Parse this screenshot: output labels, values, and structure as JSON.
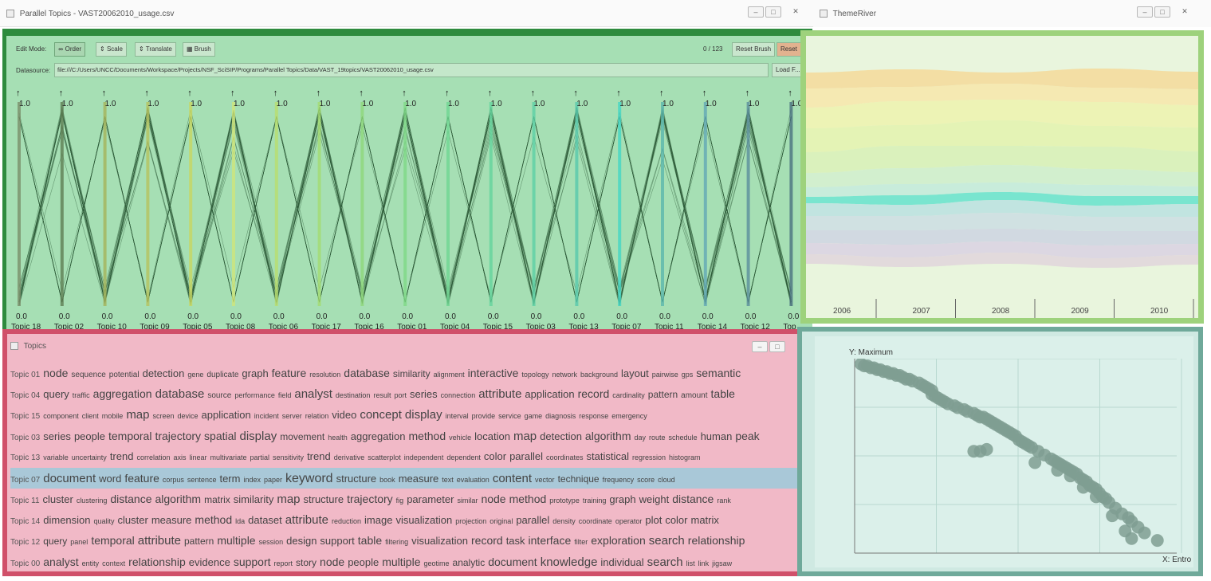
{
  "parallel_window": {
    "title": "Parallel Topics - VAST20062010_usage.csv",
    "toolbar": {
      "edit_mode_label": "Edit Mode:",
      "order_label": "Order",
      "scale_label": "Scale",
      "translate_label": "Translate",
      "brush_label": "Brush",
      "count": "0 / 123",
      "reset_brush_label": "Reset Brush",
      "reset_label": "Reset"
    },
    "datasource": {
      "label": "Datasource:",
      "value": "file:///C:/Users/UNCC/Documents/Workspace/Projects/NSF_SciSIP/Programs/Parallel Topics/Data/VAST_19topics/VAST20062010_usage.csv",
      "load_label": "Load F..."
    },
    "axes": [
      {
        "name": "Topic 18",
        "color": "#7a8f6a"
      },
      {
        "name": "Topic 02",
        "color": "#5e7d52"
      },
      {
        "name": "Topic 10",
        "color": "#a5b35a"
      },
      {
        "name": "Topic 09",
        "color": "#b7c25e"
      },
      {
        "name": "Topic 05",
        "color": "#c8d660"
      },
      {
        "name": "Topic 08",
        "color": "#cfe57a"
      },
      {
        "name": "Topic 06",
        "color": "#b9dd6e"
      },
      {
        "name": "Topic 17",
        "color": "#a4db72"
      },
      {
        "name": "Topic 16",
        "color": "#8fd77a"
      },
      {
        "name": "Topic 01",
        "color": "#7ed886"
      },
      {
        "name": "Topic 04",
        "color": "#6fd692"
      },
      {
        "name": "Topic 15",
        "color": "#64d39c"
      },
      {
        "name": "Topic 03",
        "color": "#5ccfa5"
      },
      {
        "name": "Topic 13",
        "color": "#57c8ad"
      },
      {
        "name": "Topic 07",
        "color": "#43d6c4"
      },
      {
        "name": "Topic 11",
        "color": "#5bb7ad"
      },
      {
        "name": "Topic 14",
        "color": "#63a8b5"
      },
      {
        "name": "Topic 12",
        "color": "#5b8d9c"
      },
      {
        "name": "Top",
        "color": "#4a7080"
      }
    ],
    "axis_max": "1.0",
    "axis_min": "0.0"
  },
  "themeriver_window": {
    "title": "ThemeRiver",
    "years": [
      "2006",
      "2007",
      "2008",
      "2009",
      "2010"
    ]
  },
  "topics_window": {
    "title": "Topics",
    "rows": [
      {
        "id": "Topic 01",
        "selected": false,
        "words": [
          [
            "node",
            14
          ],
          [
            "sequence",
            10
          ],
          [
            "potential",
            10
          ],
          [
            "detection",
            13
          ],
          [
            "gene",
            9
          ],
          [
            "duplicate",
            10
          ],
          [
            "graph",
            13
          ],
          [
            "feature",
            14
          ],
          [
            "resolution",
            9
          ],
          [
            "database",
            14
          ],
          [
            "similarity",
            12
          ],
          [
            "alignment",
            9
          ],
          [
            "interactive",
            14
          ],
          [
            "topology",
            9
          ],
          [
            "network",
            9
          ],
          [
            "background",
            9
          ],
          [
            "layout",
            13
          ],
          [
            "pairwise",
            9
          ],
          [
            "gps",
            9
          ],
          [
            "semantic",
            14
          ]
        ]
      },
      {
        "id": "Topic 04",
        "selected": false,
        "words": [
          [
            "query",
            13
          ],
          [
            "traffic",
            9
          ],
          [
            "aggregation",
            14
          ],
          [
            "database",
            15
          ],
          [
            "source",
            10
          ],
          [
            "performance",
            9
          ],
          [
            "field",
            9
          ],
          [
            "analyst",
            15
          ],
          [
            "destination",
            9
          ],
          [
            "result",
            9
          ],
          [
            "port",
            9
          ],
          [
            "series",
            13
          ],
          [
            "connection",
            9
          ],
          [
            "attribute",
            15
          ],
          [
            "application",
            13
          ],
          [
            "record",
            14
          ],
          [
            "cardinality",
            9
          ],
          [
            "pattern",
            12
          ],
          [
            "amount",
            10
          ],
          [
            "table",
            14
          ]
        ]
      },
      {
        "id": "Topic 15",
        "selected": false,
        "words": [
          [
            "component",
            9
          ],
          [
            "client",
            9
          ],
          [
            "mobile",
            9
          ],
          [
            "map",
            15
          ],
          [
            "screen",
            9
          ],
          [
            "device",
            9
          ],
          [
            "application",
            13
          ],
          [
            "incident",
            9
          ],
          [
            "server",
            9
          ],
          [
            "relation",
            9
          ],
          [
            "video",
            13
          ],
          [
            "concept",
            15
          ],
          [
            "display",
            15
          ],
          [
            "interval",
            9
          ],
          [
            "provide",
            9
          ],
          [
            "service",
            9
          ],
          [
            "game",
            9
          ],
          [
            "diagnosis",
            9
          ],
          [
            "response",
            9
          ],
          [
            "emergency",
            9
          ]
        ]
      },
      {
        "id": "Topic 03",
        "selected": false,
        "words": [
          [
            "series",
            13
          ],
          [
            "people",
            13
          ],
          [
            "temporal",
            14
          ],
          [
            "trajectory",
            14
          ],
          [
            "spatial",
            14
          ],
          [
            "display",
            15
          ],
          [
            "movement",
            12
          ],
          [
            "health",
            9
          ],
          [
            "aggregation",
            13
          ],
          [
            "method",
            14
          ],
          [
            "vehicle",
            9
          ],
          [
            "location",
            13
          ],
          [
            "map",
            15
          ],
          [
            "detection",
            13
          ],
          [
            "algorithm",
            14
          ],
          [
            "day",
            9
          ],
          [
            "route",
            9
          ],
          [
            "schedule",
            9
          ],
          [
            "human",
            13
          ],
          [
            "peak",
            14
          ]
        ]
      },
      {
        "id": "Topic 13",
        "selected": false,
        "words": [
          [
            "variable",
            9
          ],
          [
            "uncertainty",
            9
          ],
          [
            "trend",
            13
          ],
          [
            "correlation",
            9
          ],
          [
            "axis",
            9
          ],
          [
            "linear",
            9
          ],
          [
            "multivariate",
            9
          ],
          [
            "partial",
            9
          ],
          [
            "sensitivity",
            9
          ],
          [
            "trend",
            13
          ],
          [
            "derivative",
            9
          ],
          [
            "scatterplot",
            9
          ],
          [
            "independent",
            9
          ],
          [
            "dependent",
            9
          ],
          [
            "color",
            13
          ],
          [
            "parallel",
            13
          ],
          [
            "coordinates",
            9
          ],
          [
            "statistical",
            13
          ],
          [
            "regression",
            9
          ],
          [
            "histogram",
            9
          ]
        ]
      },
      {
        "id": "Topic 07",
        "selected": true,
        "words": [
          [
            "document",
            15
          ],
          [
            "word",
            13
          ],
          [
            "feature",
            14
          ],
          [
            "corpus",
            9
          ],
          [
            "sentence",
            9
          ],
          [
            "term",
            13
          ],
          [
            "index",
            9
          ],
          [
            "paper",
            9
          ],
          [
            "keyword",
            16
          ],
          [
            "structure",
            13
          ],
          [
            "book",
            9
          ],
          [
            "measure",
            13
          ],
          [
            "text",
            9
          ],
          [
            "evaluation",
            9
          ],
          [
            "content",
            15
          ],
          [
            "vector",
            9
          ],
          [
            "technique",
            12
          ],
          [
            "frequency",
            9
          ],
          [
            "score",
            9
          ],
          [
            "cloud",
            9
          ]
        ]
      },
      {
        "id": "Topic 11",
        "selected": false,
        "words": [
          [
            "cluster",
            13
          ],
          [
            "clustering",
            9
          ],
          [
            "distance",
            14
          ],
          [
            "algorithm",
            14
          ],
          [
            "matrix",
            12
          ],
          [
            "similarity",
            13
          ],
          [
            "map",
            15
          ],
          [
            "structure",
            13
          ],
          [
            "trajectory",
            14
          ],
          [
            "fig",
            9
          ],
          [
            "parameter",
            13
          ],
          [
            "similar",
            9
          ],
          [
            "node",
            14
          ],
          [
            "method",
            14
          ],
          [
            "prototype",
            9
          ],
          [
            "training",
            9
          ],
          [
            "graph",
            13
          ],
          [
            "weight",
            13
          ],
          [
            "distance",
            14
          ],
          [
            "rank",
            9
          ]
        ]
      },
      {
        "id": "Topic 14",
        "selected": false,
        "words": [
          [
            "dimension",
            13
          ],
          [
            "quality",
            9
          ],
          [
            "cluster",
            13
          ],
          [
            "measure",
            13
          ],
          [
            "method",
            14
          ],
          [
            "lda",
            9
          ],
          [
            "dataset",
            13
          ],
          [
            "attribute",
            15
          ],
          [
            "reduction",
            9
          ],
          [
            "image",
            13
          ],
          [
            "visualization",
            13
          ],
          [
            "projection",
            9
          ],
          [
            "original",
            9
          ],
          [
            "parallel",
            13
          ],
          [
            "density",
            9
          ],
          [
            "coordinate",
            9
          ],
          [
            "operator",
            9
          ],
          [
            "plot",
            13
          ],
          [
            "color",
            13
          ],
          [
            "matrix",
            13
          ]
        ]
      },
      {
        "id": "Topic 12",
        "selected": false,
        "words": [
          [
            "query",
            12
          ],
          [
            "panel",
            9
          ],
          [
            "temporal",
            14
          ],
          [
            "attribute",
            15
          ],
          [
            "pattern",
            12
          ],
          [
            "multiple",
            14
          ],
          [
            "session",
            9
          ],
          [
            "design",
            13
          ],
          [
            "support",
            13
          ],
          [
            "table",
            14
          ],
          [
            "filtering",
            9
          ],
          [
            "visualization",
            13
          ],
          [
            "record",
            14
          ],
          [
            "task",
            13
          ],
          [
            "interface",
            14
          ],
          [
            "filter",
            9
          ],
          [
            "exploration",
            14
          ],
          [
            "search",
            15
          ],
          [
            "relationship",
            14
          ]
        ]
      },
      {
        "id": "Topic 00",
        "selected": false,
        "words": [
          [
            "analyst",
            14
          ],
          [
            "entity",
            9
          ],
          [
            "context",
            9
          ],
          [
            "relationship",
            14
          ],
          [
            "evidence",
            13
          ],
          [
            "support",
            14
          ],
          [
            "report",
            9
          ],
          [
            "story",
            12
          ],
          [
            "node",
            14
          ],
          [
            "people",
            13
          ],
          [
            "multiple",
            14
          ],
          [
            "geotime",
            9
          ],
          [
            "analytic",
            12
          ],
          [
            "document",
            14
          ],
          [
            "knowledge",
            15
          ],
          [
            "individual",
            13
          ],
          [
            "search",
            15
          ],
          [
            "list",
            9
          ],
          [
            "link",
            9
          ],
          [
            "jigsaw",
            9
          ]
        ]
      }
    ]
  },
  "scatter_window": {
    "ylabel": "Y: Maximum",
    "xlabel": "X: Entro"
  },
  "colors": {
    "parallel_highlight": "#2e8b3e",
    "themeriver_highlight": "#9ed27c",
    "topics_highlight": "#d0506a",
    "scatter_highlight": "#6fa99a",
    "selected_row": "#a9c8d8"
  },
  "chart_data": [
    {
      "type": "scatter",
      "ylabel": "Y: Maximum",
      "xlabel": "X: Entro",
      "x": [
        0.01,
        0.02,
        0.03,
        0.04,
        0.05,
        0.06,
        0.07,
        0.08,
        0.09,
        0.1,
        0.11,
        0.12,
        0.13,
        0.14,
        0.15,
        0.16,
        0.17,
        0.19,
        0.2,
        0.21,
        0.22,
        0.23,
        0.23,
        0.24,
        0.25,
        0.26,
        0.27,
        0.28,
        0.3,
        0.31,
        0.33,
        0.34,
        0.36,
        0.37,
        0.38,
        0.39,
        0.4,
        0.41,
        0.42,
        0.43,
        0.44,
        0.45,
        0.46,
        0.47,
        0.48,
        0.49,
        0.5,
        0.51,
        0.52,
        0.53,
        0.54,
        0.56,
        0.58,
        0.6,
        0.61,
        0.62,
        0.63,
        0.64,
        0.65,
        0.66,
        0.67,
        0.68,
        0.69,
        0.7,
        0.71,
        0.72,
        0.73,
        0.74,
        0.75,
        0.76,
        0.77,
        0.78,
        0.8,
        0.82,
        0.84,
        0.85,
        0.87,
        0.89,
        0.93,
        0.36,
        0.38,
        0.4,
        0.55,
        0.62,
        0.66,
        0.7,
        0.74,
        0.79,
        0.83,
        0.85
      ],
      "y": [
        0.98,
        0.97,
        0.97,
        0.96,
        0.96,
        0.95,
        0.95,
        0.94,
        0.94,
        0.93,
        0.93,
        0.92,
        0.92,
        0.91,
        0.9,
        0.9,
        0.89,
        0.88,
        0.87,
        0.86,
        0.85,
        0.84,
        0.82,
        0.81,
        0.8,
        0.79,
        0.78,
        0.77,
        0.76,
        0.75,
        0.74,
        0.73,
        0.72,
        0.71,
        0.7,
        0.7,
        0.69,
        0.68,
        0.67,
        0.66,
        0.65,
        0.64,
        0.63,
        0.62,
        0.61,
        0.6,
        0.58,
        0.57,
        0.56,
        0.55,
        0.54,
        0.52,
        0.5,
        0.48,
        0.47,
        0.46,
        0.45,
        0.44,
        0.43,
        0.42,
        0.41,
        0.4,
        0.38,
        0.37,
        0.36,
        0.34,
        0.33,
        0.32,
        0.3,
        0.28,
        0.27,
        0.25,
        0.22,
        0.19,
        0.17,
        0.15,
        0.12,
        0.09,
        0.05,
        0.52,
        0.52,
        0.53,
        0.46,
        0.42,
        0.39,
        0.33,
        0.28,
        0.18,
        0.1,
        0.06
      ]
    },
    {
      "type": "area",
      "x": [
        "2006",
        "2007",
        "2008",
        "2009",
        "2010"
      ],
      "series": []
    }
  ]
}
